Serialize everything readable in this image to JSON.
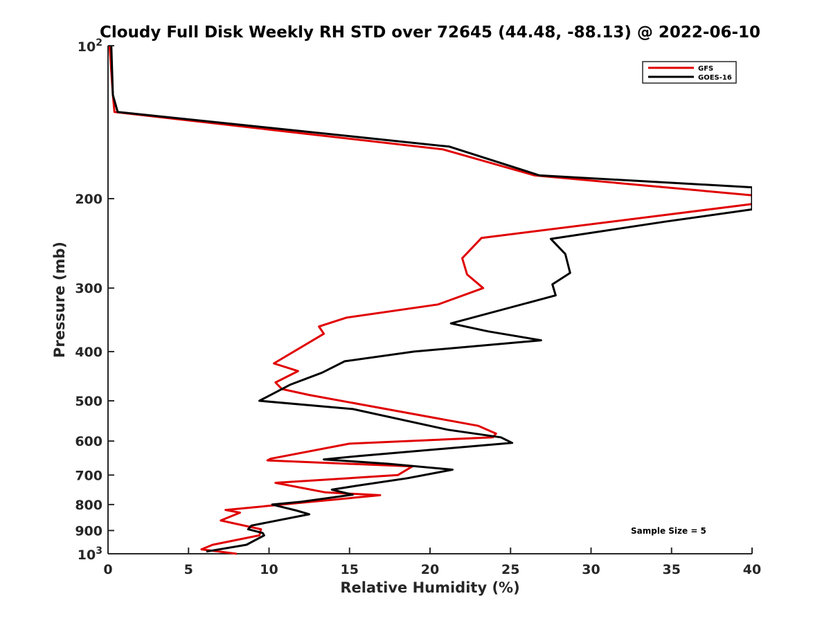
{
  "chart_data": {
    "type": "line",
    "title": "Cloudy Full Disk Weekly RH STD over 72645 (44.48, -88.13) @ 2022-06-10",
    "xlabel": "Relative Humidity (%)",
    "ylabel": "Pressure (mb)",
    "xlim": [
      0,
      40
    ],
    "ylim": [
      100,
      1000
    ],
    "y_scale": "log",
    "y_reversed": true,
    "grid": false,
    "legend_position": "top-right",
    "xticks": [
      "0",
      "5",
      "10",
      "15",
      "20",
      "25",
      "30",
      "35",
      "40"
    ],
    "yticks": [
      {
        "value": 100,
        "label": "10",
        "sup": "2"
      },
      {
        "value": 200,
        "label": "200",
        "sup": ""
      },
      {
        "value": 300,
        "label": "300",
        "sup": ""
      },
      {
        "value": 400,
        "label": "400",
        "sup": ""
      },
      {
        "value": 500,
        "label": "500",
        "sup": ""
      },
      {
        "value": 600,
        "label": "600",
        "sup": ""
      },
      {
        "value": 700,
        "label": "700",
        "sup": ""
      },
      {
        "value": 800,
        "label": "800",
        "sup": ""
      },
      {
        "value": 900,
        "label": "900",
        "sup": ""
      },
      {
        "value": 1000,
        "label": "10",
        "sup": "3"
      }
    ],
    "annotation": "Sample Size = 5",
    "series": [
      {
        "name": "GFS",
        "color": "#e00000",
        "points": [
          [
            0.1,
            100
          ],
          [
            0.3,
            125
          ],
          [
            0.4,
            135
          ],
          [
            20.8,
            160
          ],
          [
            26.5,
            180
          ],
          [
            40,
            197
          ],
          [
            40,
            205
          ],
          [
            23.2,
            239
          ],
          [
            22.0,
            262
          ],
          [
            22.3,
            282
          ],
          [
            23.3,
            300
          ],
          [
            20.5,
            323
          ],
          [
            14.8,
            343
          ],
          [
            13.1,
            357
          ],
          [
            13.4,
            369
          ],
          [
            10.3,
            422
          ],
          [
            11.8,
            437
          ],
          [
            10.4,
            460
          ],
          [
            10.8,
            474
          ],
          [
            12.5,
            487
          ],
          [
            23.0,
            560
          ],
          [
            24.1,
            580
          ],
          [
            23.9,
            590
          ],
          [
            15.0,
            607
          ],
          [
            10.1,
            650
          ],
          [
            9.9,
            655
          ],
          [
            18.9,
            673
          ],
          [
            18.0,
            700
          ],
          [
            10.4,
            725
          ],
          [
            13.5,
            757
          ],
          [
            16.9,
            767
          ],
          [
            7.3,
            820
          ],
          [
            8.2,
            830
          ],
          [
            7.0,
            860
          ],
          [
            9.5,
            895
          ],
          [
            9.4,
            920
          ],
          [
            6.5,
            960
          ],
          [
            5.8,
            980
          ],
          [
            8.0,
            1000
          ]
        ]
      },
      {
        "name": "GOES-16",
        "color": "#000000",
        "points": [
          [
            0.2,
            100
          ],
          [
            0.3,
            125
          ],
          [
            0.6,
            135
          ],
          [
            21.2,
            158
          ],
          [
            26.8,
            180
          ],
          [
            40,
            190
          ],
          [
            40,
            210
          ],
          [
            34.6,
            222
          ],
          [
            27.5,
            240
          ],
          [
            28.4,
            257
          ],
          [
            28.7,
            280
          ],
          [
            27.6,
            295
          ],
          [
            27.8,
            310
          ],
          [
            21.3,
            352
          ],
          [
            23.6,
            365
          ],
          [
            26.9,
            380
          ],
          [
            19.0,
            400
          ],
          [
            14.7,
            418
          ],
          [
            13.3,
            440
          ],
          [
            11.3,
            465
          ],
          [
            9.4,
            500
          ],
          [
            15.2,
            519
          ],
          [
            21.1,
            570
          ],
          [
            24.4,
            590
          ],
          [
            25.1,
            605
          ],
          [
            15.6,
            642
          ],
          [
            13.4,
            652
          ],
          [
            17.4,
            665
          ],
          [
            21.4,
            683
          ],
          [
            18.6,
            710
          ],
          [
            15.4,
            735
          ],
          [
            13.9,
            748
          ],
          [
            15.2,
            765
          ],
          [
            12.0,
            790
          ],
          [
            10.2,
            800
          ],
          [
            11.7,
            822
          ],
          [
            12.5,
            836
          ],
          [
            8.9,
            880
          ],
          [
            8.7,
            895
          ],
          [
            9.6,
            910
          ],
          [
            9.7,
            920
          ],
          [
            9.0,
            945
          ],
          [
            8.6,
            960
          ],
          [
            6.1,
            990
          ]
        ]
      }
    ]
  }
}
